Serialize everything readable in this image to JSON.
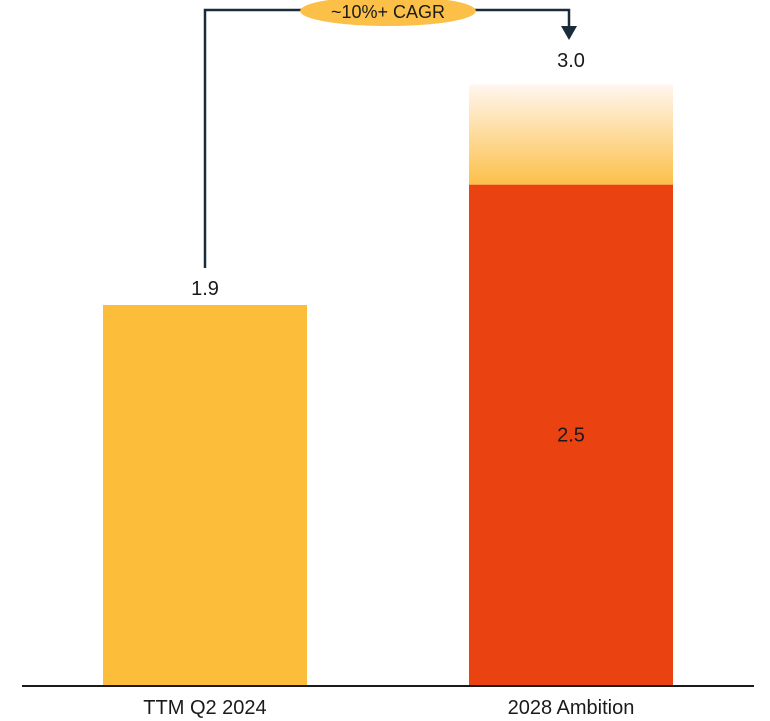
{
  "chart_data": {
    "type": "bar",
    "categories": [
      "TTM Q2 2024",
      "2028 Ambition"
    ],
    "values": [
      1.9,
      2.5
    ],
    "stretch_value": 3.0,
    "data_labels": [
      "1.9",
      "2.5"
    ],
    "stretch_label": "3.0",
    "annotation": "~10%+ CAGR",
    "ylim": [
      0,
      3.2
    ],
    "grid": false,
    "legend": "none",
    "colors": {
      "bar_current": "#FBBD3A",
      "bar_ambition": "#EB4212",
      "stretch_fade_top": "#FFF6F0",
      "stretch_fade_bottom": "#FCC049",
      "annotation_fill": "#FCC049",
      "axis": "#1a1a1a",
      "arrow": "#1a2b3a",
      "label_on_bar": "#ffffff",
      "label": "#1a1a1a"
    }
  }
}
